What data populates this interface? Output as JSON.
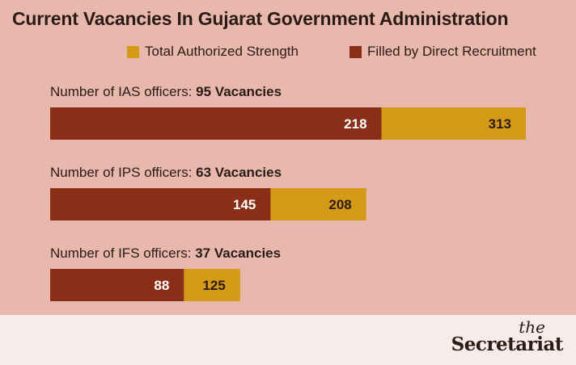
{
  "chart_data": {
    "type": "bar",
    "orientation": "horizontal",
    "title": "Current Vacancies In Gujarat Government Administration",
    "legend": [
      {
        "label": "Total Authorized Strength",
        "color": "#d49a17"
      },
      {
        "label": "Filled by Direct Recruitment",
        "color": "#8a2e18"
      }
    ],
    "legend_position": "top-right",
    "xlim": [
      0,
      313
    ],
    "grid": false,
    "rows": [
      {
        "prefix": "Number of IAS officers: ",
        "vacancy_text": "95 Vacancies",
        "total": 313,
        "filled": 218
      },
      {
        "prefix": "Number of IPS officers: ",
        "vacancy_text": "63 Vacancies",
        "total": 208,
        "filled": 145
      },
      {
        "prefix": "Number of IFS officers: ",
        "vacancy_text": "37 Vacancies",
        "total": 125,
        "filled": 88
      }
    ]
  },
  "brand": {
    "the": "the",
    "name": "Secretariat"
  }
}
